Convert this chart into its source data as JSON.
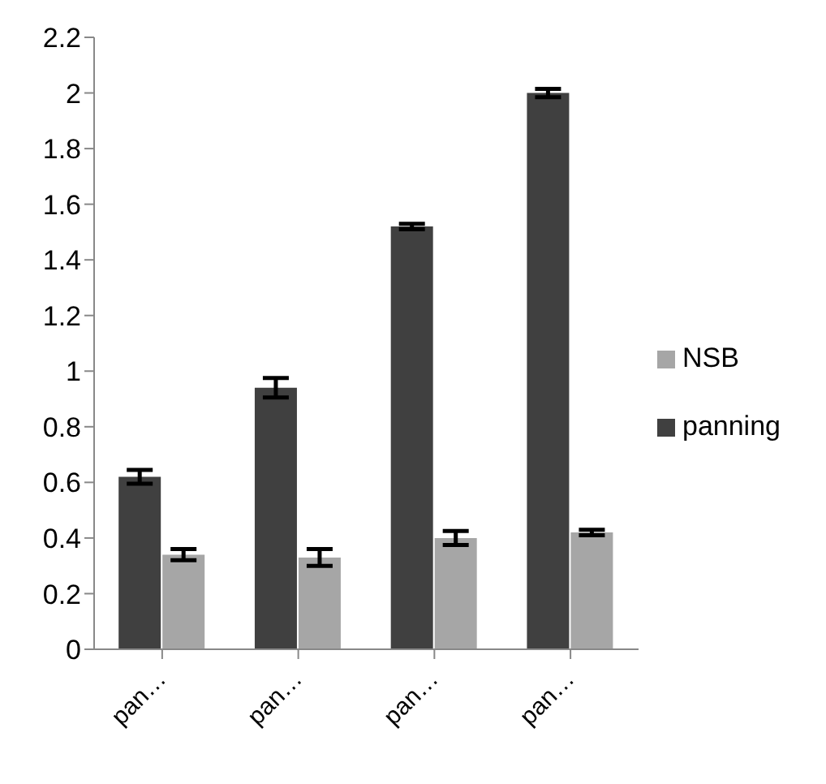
{
  "chart_data": {
    "type": "bar",
    "categories": [
      "pan…",
      "pan…",
      "pan…",
      "pan…"
    ],
    "series": [
      {
        "name": "panning",
        "color": "#404040",
        "values": [
          0.62,
          0.94,
          1.52,
          2.0
        ],
        "errors": [
          0.025,
          0.035,
          0.01,
          0.015
        ]
      },
      {
        "name": "NSB",
        "color": "#a6a6a6",
        "values": [
          0.34,
          0.33,
          0.4,
          0.42
        ],
        "errors": [
          0.02,
          0.03,
          0.025,
          0.01
        ]
      }
    ],
    "ylim": [
      0,
      2.2
    ],
    "yticks": [
      0,
      0.2,
      0.4,
      0.6,
      0.8,
      1,
      1.2,
      1.4,
      1.6,
      1.8,
      2,
      2.2
    ],
    "grid": false,
    "legend": "right"
  }
}
